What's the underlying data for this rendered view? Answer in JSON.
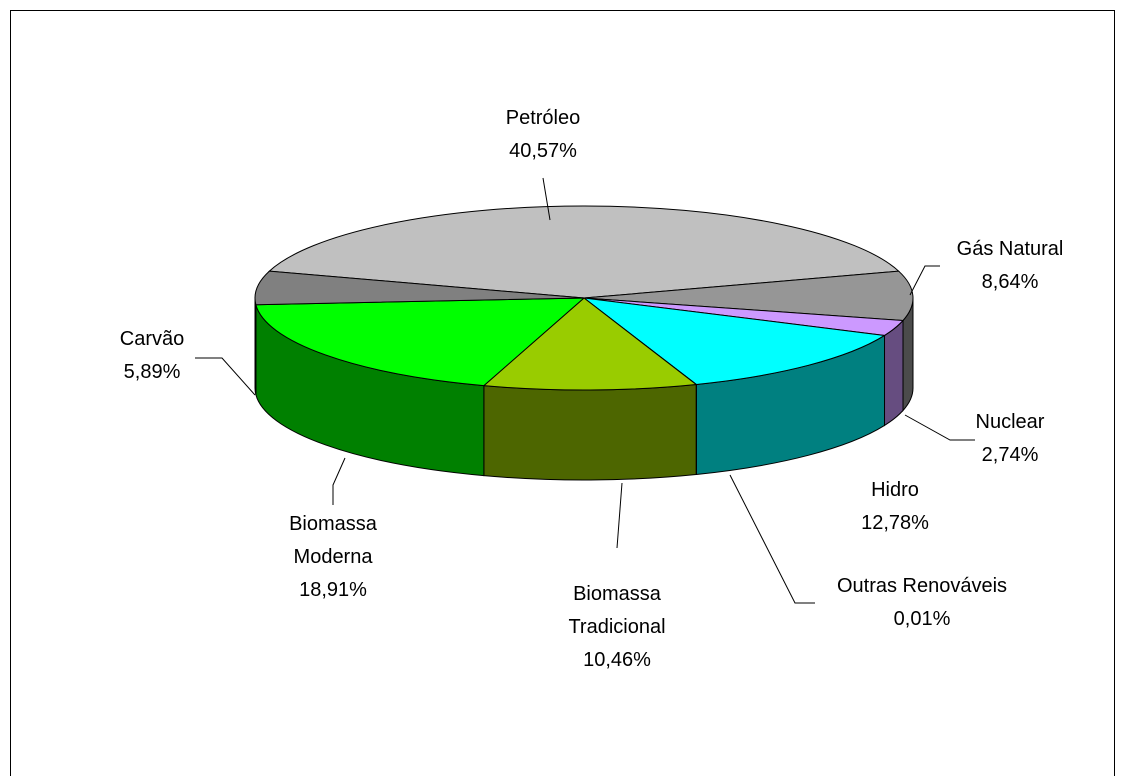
{
  "chart_data": {
    "type": "pie3d",
    "categories": [
      "Petróleo",
      "Gás Natural",
      "Nuclear",
      "Hidro",
      "Outras Renováveis",
      "Biomassa Tradicional",
      "Biomassa Moderna",
      "Carvão"
    ],
    "values": [
      40.57,
      8.64,
      2.74,
      12.78,
      0.01,
      10.46,
      18.91,
      5.89
    ],
    "value_labels": [
      "40,57%",
      "8,64%",
      "2,74%",
      "12,78%",
      "0,01%",
      "10,46%",
      "18,91%",
      "5,89%"
    ],
    "colors": [
      "#c0c0c0",
      "#969696",
      "#cc99ff",
      "#00ffff",
      "#339966",
      "#99cc00",
      "#00ff00",
      "#808080"
    ]
  }
}
